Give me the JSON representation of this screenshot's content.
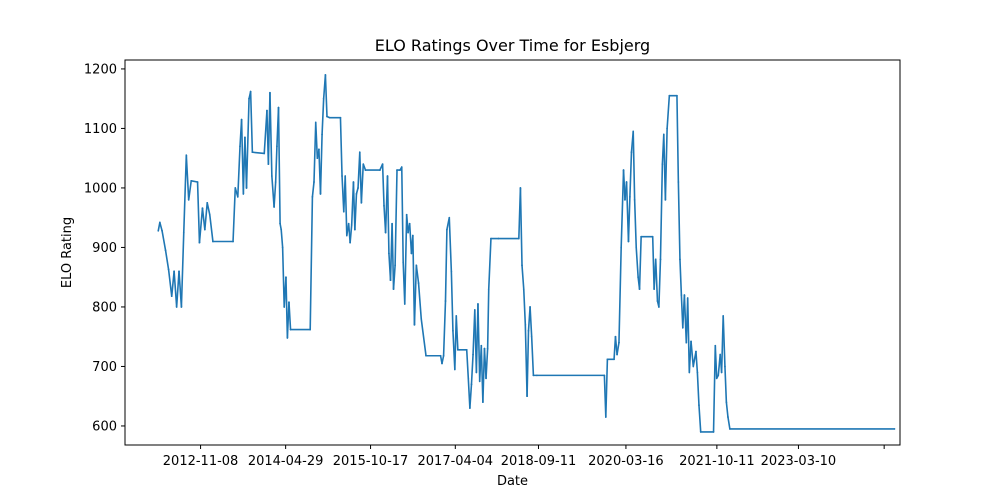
{
  "chart_data": {
    "type": "line",
    "title": "ELO Ratings Over Time for Esbjerg",
    "xlabel": "Date",
    "ylabel": "ELO Rating",
    "x_tick_labels": [
      "2012-11-08",
      "2014-04-29",
      "2015-10-17",
      "2017-04-04",
      "2018-09-11",
      "2020-03-16",
      "2021-10-11",
      "2023-03-10",
      ""
    ],
    "x_tick_values": [
      "2012-11-08",
      "2014-04-29",
      "2015-10-17",
      "2017-04-04",
      "2018-09-11",
      "2020-03-16",
      "2021-10-11",
      "2023-03-10",
      "2024-09-01"
    ],
    "x_range": [
      "2011-07-20",
      "2024-12-10"
    ],
    "y_tick_values": [
      600,
      700,
      800,
      900,
      1000,
      1100,
      1200
    ],
    "ylim": [
      568,
      1215
    ],
    "grid": false,
    "color": "#1f77b4",
    "series": [
      {
        "values": [
          [
            "2012-02-15",
            928
          ],
          [
            "2012-02-25",
            942
          ],
          [
            "2012-03-10",
            928
          ],
          [
            "2012-04-01",
            895
          ],
          [
            "2012-04-20",
            863
          ],
          [
            "2012-05-10",
            818
          ],
          [
            "2012-05-25",
            860
          ],
          [
            "2012-06-10",
            800
          ],
          [
            "2012-06-25",
            860
          ],
          [
            "2012-07-10",
            800
          ],
          [
            "2012-07-25",
            925
          ],
          [
            "2012-08-10",
            1055
          ],
          [
            "2012-08-25",
            980
          ],
          [
            "2012-09-10",
            1012
          ],
          [
            "2012-10-20",
            1010
          ],
          [
            "2012-11-01",
            908
          ],
          [
            "2012-11-20",
            966
          ],
          [
            "2012-12-05",
            930
          ],
          [
            "2012-12-20",
            975
          ],
          [
            "2013-01-05",
            955
          ],
          [
            "2013-01-25",
            910
          ],
          [
            "2013-06-01",
            910
          ],
          [
            "2013-06-15",
            1000
          ],
          [
            "2013-07-01",
            985
          ],
          [
            "2013-07-15",
            1070
          ],
          [
            "2013-07-25",
            1115
          ],
          [
            "2013-08-05",
            990
          ],
          [
            "2013-08-15",
            1085
          ],
          [
            "2013-08-25",
            1000
          ],
          [
            "2013-09-10",
            1150
          ],
          [
            "2013-09-20",
            1162
          ],
          [
            "2013-10-01",
            1060
          ],
          [
            "2013-12-15",
            1058
          ],
          [
            "2014-01-01",
            1130
          ],
          [
            "2014-01-10",
            1040
          ],
          [
            "2014-01-20",
            1160
          ],
          [
            "2014-02-01",
            1020
          ],
          [
            "2014-02-15",
            968
          ],
          [
            "2014-02-25",
            1010
          ],
          [
            "2014-03-05",
            1070
          ],
          [
            "2014-03-15",
            1135
          ],
          [
            "2014-03-25",
            940
          ],
          [
            "2014-04-01",
            930
          ],
          [
            "2014-04-10",
            900
          ],
          [
            "2014-04-20",
            800
          ],
          [
            "2014-05-01",
            850
          ],
          [
            "2014-05-10",
            748
          ],
          [
            "2014-05-20",
            808
          ],
          [
            "2014-05-30",
            762
          ],
          [
            "2014-10-01",
            762
          ],
          [
            "2014-10-15",
            985
          ],
          [
            "2014-10-25",
            1010
          ],
          [
            "2014-11-05",
            1110
          ],
          [
            "2014-11-15",
            1050
          ],
          [
            "2014-11-25",
            1065
          ],
          [
            "2014-12-05",
            990
          ],
          [
            "2014-12-15",
            1090
          ],
          [
            "2014-12-25",
            1150
          ],
          [
            "2015-01-05",
            1190
          ],
          [
            "2015-01-15",
            1120
          ],
          [
            "2015-02-01",
            1118
          ],
          [
            "2015-04-10",
            1118
          ],
          [
            "2015-04-20",
            1020
          ],
          [
            "2015-05-01",
            960
          ],
          [
            "2015-05-10",
            1020
          ],
          [
            "2015-05-20",
            920
          ],
          [
            "2015-06-01",
            940
          ],
          [
            "2015-06-10",
            908
          ],
          [
            "2015-06-20",
            938
          ],
          [
            "2015-07-01",
            1010
          ],
          [
            "2015-07-10",
            930
          ],
          [
            "2015-07-20",
            990
          ],
          [
            "2015-07-30",
            1000
          ],
          [
            "2015-08-10",
            1060
          ],
          [
            "2015-08-20",
            975
          ],
          [
            "2015-09-01",
            1040
          ],
          [
            "2015-09-15",
            1030
          ],
          [
            "2015-12-15",
            1030
          ],
          [
            "2016-01-01",
            1040
          ],
          [
            "2016-01-10",
            970
          ],
          [
            "2016-01-20",
            925
          ],
          [
            "2016-02-01",
            1020
          ],
          [
            "2016-02-10",
            890
          ],
          [
            "2016-02-20",
            845
          ],
          [
            "2016-03-01",
            940
          ],
          [
            "2016-03-10",
            830
          ],
          [
            "2016-03-20",
            870
          ],
          [
            "2016-04-01",
            1030
          ],
          [
            "2016-04-20",
            1030
          ],
          [
            "2016-05-01",
            1035
          ],
          [
            "2016-05-10",
            875
          ],
          [
            "2016-05-20",
            805
          ],
          [
            "2016-06-01",
            955
          ],
          [
            "2016-06-10",
            925
          ],
          [
            "2016-06-20",
            940
          ],
          [
            "2016-07-01",
            890
          ],
          [
            "2016-07-10",
            920
          ],
          [
            "2016-07-20",
            770
          ],
          [
            "2016-08-01",
            870
          ],
          [
            "2016-08-15",
            840
          ],
          [
            "2016-09-01",
            780
          ],
          [
            "2016-10-01",
            718
          ],
          [
            "2017-01-01",
            718
          ],
          [
            "2017-01-10",
            705
          ],
          [
            "2017-01-20",
            718
          ],
          [
            "2017-02-01",
            810
          ],
          [
            "2017-02-10",
            930
          ],
          [
            "2017-02-25",
            950
          ],
          [
            "2017-03-10",
            860
          ],
          [
            "2017-03-20",
            760
          ],
          [
            "2017-04-01",
            695
          ],
          [
            "2017-04-10",
            785
          ],
          [
            "2017-04-20",
            728
          ],
          [
            "2017-05-01",
            728
          ],
          [
            "2017-06-15",
            728
          ],
          [
            "2017-06-25",
            680
          ],
          [
            "2017-07-05",
            630
          ],
          [
            "2017-07-15",
            670
          ],
          [
            "2017-07-25",
            720
          ],
          [
            "2017-08-05",
            795
          ],
          [
            "2017-08-15",
            690
          ],
          [
            "2017-08-25",
            805
          ],
          [
            "2017-09-05",
            675
          ],
          [
            "2017-09-15",
            735
          ],
          [
            "2017-09-25",
            640
          ],
          [
            "2017-10-05",
            730
          ],
          [
            "2017-10-15",
            680
          ],
          [
            "2017-10-25",
            730
          ],
          [
            "2017-11-01",
            830
          ],
          [
            "2017-11-15",
            915
          ],
          [
            "2018-01-01",
            915
          ],
          [
            "2018-05-10",
            915
          ],
          [
            "2018-05-20",
            1000
          ],
          [
            "2018-05-30",
            870
          ],
          [
            "2018-06-10",
            830
          ],
          [
            "2018-06-20",
            770
          ],
          [
            "2018-07-01",
            650
          ],
          [
            "2018-07-10",
            760
          ],
          [
            "2018-07-20",
            800
          ],
          [
            "2018-07-30",
            750
          ],
          [
            "2018-08-10",
            685
          ],
          [
            "2018-09-01",
            685
          ],
          [
            "2019-11-01",
            685
          ],
          [
            "2019-11-10",
            615
          ],
          [
            "2019-11-20",
            712
          ],
          [
            "2020-01-01",
            712
          ],
          [
            "2020-01-10",
            750
          ],
          [
            "2020-01-20",
            720
          ],
          [
            "2020-02-01",
            740
          ],
          [
            "2020-02-15",
            900
          ],
          [
            "2020-03-01",
            1030
          ],
          [
            "2020-03-10",
            980
          ],
          [
            "2020-03-20",
            1010
          ],
          [
            "2020-04-01",
            910
          ],
          [
            "2020-04-10",
            985
          ],
          [
            "2020-04-20",
            1060
          ],
          [
            "2020-05-01",
            1095
          ],
          [
            "2020-05-10",
            980
          ],
          [
            "2020-05-20",
            900
          ],
          [
            "2020-06-01",
            850
          ],
          [
            "2020-06-10",
            830
          ],
          [
            "2020-06-20",
            918
          ],
          [
            "2020-09-01",
            918
          ],
          [
            "2020-09-10",
            830
          ],
          [
            "2020-09-20",
            880
          ],
          [
            "2020-10-01",
            810
          ],
          [
            "2020-10-10",
            800
          ],
          [
            "2020-10-20",
            880
          ],
          [
            "2020-11-01",
            1040
          ],
          [
            "2020-11-10",
            1090
          ],
          [
            "2020-11-20",
            980
          ],
          [
            "2020-12-01",
            1100
          ],
          [
            "2020-12-15",
            1155
          ],
          [
            "2021-02-01",
            1155
          ],
          [
            "2021-02-10",
            1010
          ],
          [
            "2021-02-20",
            880
          ],
          [
            "2021-03-01",
            820
          ],
          [
            "2021-03-10",
            765
          ],
          [
            "2021-03-20",
            820
          ],
          [
            "2021-04-01",
            740
          ],
          [
            "2021-04-10",
            815
          ],
          [
            "2021-04-20",
            690
          ],
          [
            "2021-05-01",
            742
          ],
          [
            "2021-05-15",
            700
          ],
          [
            "2021-06-01",
            725
          ],
          [
            "2021-06-10",
            690
          ],
          [
            "2021-06-20",
            635
          ],
          [
            "2021-07-01",
            590
          ],
          [
            "2021-09-20",
            590
          ],
          [
            "2021-10-01",
            735
          ],
          [
            "2021-10-10",
            680
          ],
          [
            "2021-10-20",
            685
          ],
          [
            "2021-11-01",
            720
          ],
          [
            "2021-11-10",
            690
          ],
          [
            "2021-11-20",
            785
          ],
          [
            "2021-12-01",
            700
          ],
          [
            "2021-12-10",
            640
          ],
          [
            "2021-12-20",
            615
          ],
          [
            "2022-01-01",
            595
          ],
          [
            "2024-11-05",
            595
          ]
        ]
      }
    ]
  }
}
